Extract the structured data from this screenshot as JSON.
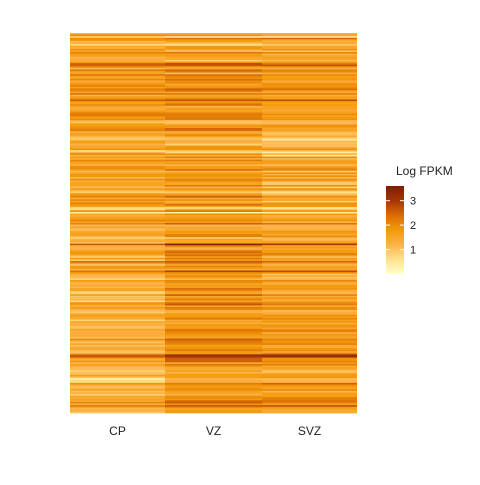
{
  "chart_data": {
    "type": "heatmap",
    "title": "",
    "xlabel": "",
    "ylabel": "",
    "columns": [
      "CP",
      "VZ",
      "SVZ"
    ],
    "row_count": 240,
    "row_labels_shown": false,
    "grid": false,
    "legend": {
      "title": "Log FPKM",
      "placement": "right",
      "ticks": [
        1,
        2,
        3
      ],
      "range": [
        0,
        3.6
      ],
      "colors": [
        "#FFFFCC",
        "#FFE38A",
        "#FDB24A",
        "#F39A0B",
        "#D96C06",
        "#A63603",
        "#7F1D03"
      ]
    },
    "value_range": [
      0,
      3.6
    ],
    "column_profiles": [
      {
        "name": "CP",
        "segments": [
          [
            0,
            60,
            1.6
          ],
          [
            60,
            120,
            1.5
          ],
          [
            120,
            180,
            1.4
          ],
          [
            180,
            240,
            1.3
          ]
        ]
      },
      {
        "name": "VZ",
        "segments": [
          [
            0,
            60,
            1.7
          ],
          [
            60,
            120,
            1.6
          ],
          [
            120,
            180,
            1.9
          ],
          [
            180,
            240,
            1.9
          ]
        ]
      },
      {
        "name": "SVZ",
        "segments": [
          [
            0,
            60,
            1.6
          ],
          [
            60,
            120,
            1.3
          ],
          [
            120,
            180,
            1.7
          ],
          [
            180,
            240,
            1.8
          ]
        ]
      }
    ]
  }
}
